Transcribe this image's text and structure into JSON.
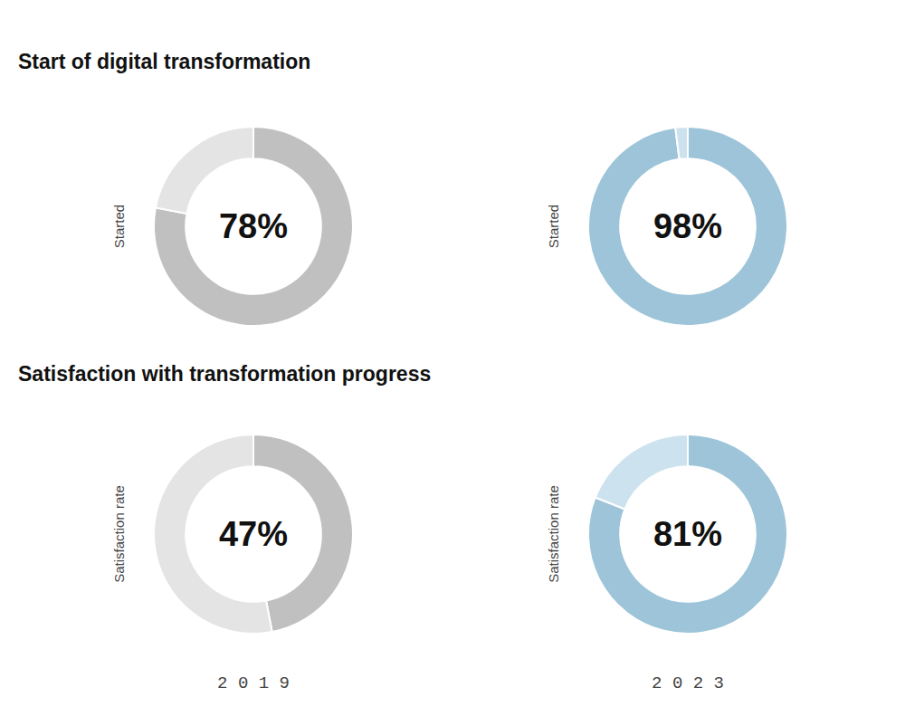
{
  "chart_data": [
    {
      "type": "donut",
      "title": "Start of digital transformation",
      "ylabel": "Started",
      "values": [
        78,
        22
      ],
      "value_labels": [
        "78%",
        null
      ],
      "colors": [
        "#c0c0c0",
        "#e4e4e4"
      ]
    },
    {
      "type": "donut",
      "ylabel": "Started",
      "values": [
        98,
        2
      ],
      "value_labels": [
        "98%",
        null
      ],
      "colors": [
        "#9dc4d8",
        "#cde2ef"
      ]
    },
    {
      "type": "donut",
      "title": "Satisfaction with transformation progress",
      "ylabel": "Satisfaction rate",
      "xlabel": "2 0 1 9",
      "values": [
        47,
        53
      ],
      "value_labels": [
        "47%",
        null
      ],
      "colors": [
        "#c0c0c0",
        "#e4e4e4"
      ]
    },
    {
      "type": "donut",
      "ylabel": "Satisfaction rate",
      "xlabel": "2 0 2 3",
      "values": [
        81,
        19
      ],
      "value_labels": [
        "81%",
        null
      ],
      "colors": [
        "#9dc4d8",
        "#cde2ef"
      ]
    }
  ]
}
